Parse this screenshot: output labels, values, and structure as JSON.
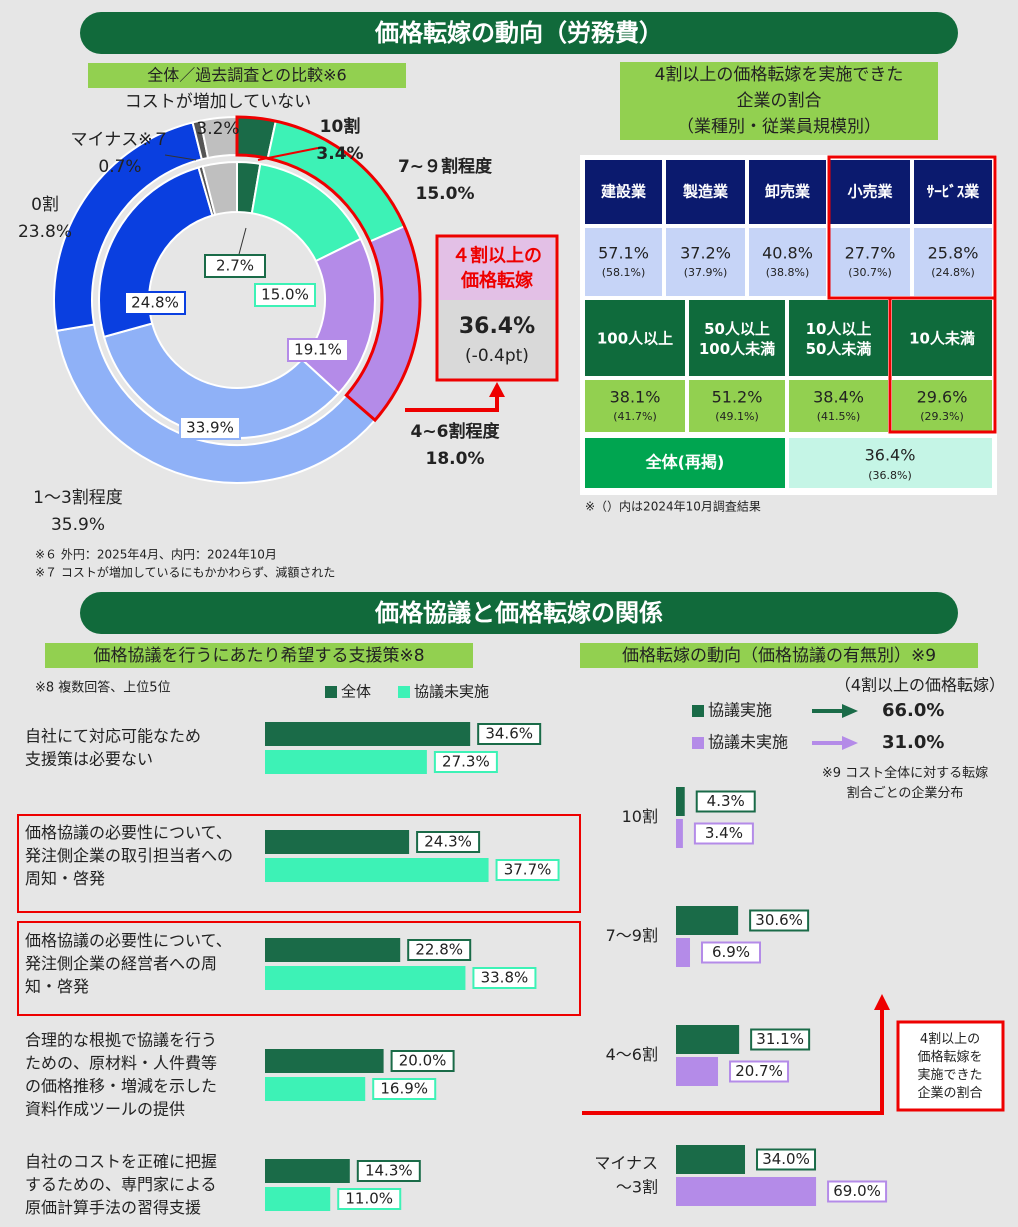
{
  "header1": "価格転嫁の動向（労務費）",
  "header2": "価格協議と価格転嫁の関係",
  "chart_data": [
    {
      "type": "donut",
      "title": "全体／過去調査との比較※6",
      "categories": [
        "10割",
        "7~９割程度",
        "4~6割程度",
        "1～3割程度",
        "0割",
        "マイナス※７",
        "コストが増加していない"
      ],
      "colors": [
        "#1a6b48",
        "#3df2b6",
        "#b48be8",
        "#8fb1f7",
        "#0a3fe0",
        "#555555",
        "#bfbfbf"
      ],
      "series": [
        {
          "values": [
            3.4,
            15.0,
            18.0,
            35.9,
            23.8,
            0.7,
            3.2
          ],
          "value_labels": [
            "3.4%",
            "15.0%",
            "18.0%",
            "35.9%",
            "23.8%",
            "0.7%",
            "3.2%"
          ]
        },
        {
          "values": [
            2.7,
            15.0,
            19.1,
            33.9,
            24.8,
            0.5,
            4.0
          ],
          "value_labels": [
            "2.7%",
            "15.0%",
            "19.1%",
            "33.9%",
            "24.8%",
            null,
            null
          ]
        }
      ],
      "callout": {
        "title": "４割以上の\n価格転嫁",
        "value": "36.4%",
        "change": "(-0.4pt)"
      },
      "notes": [
        "※６ 外円：2025年4月、内円：2024年10月",
        "※７ コストが増加しているにもかかわらず、減額された"
      ]
    },
    {
      "type": "bar",
      "orientation": "horizontal",
      "title": "価格協議を行うにあたり希望する支援策※8",
      "note": "※8 複数回答、上位5位",
      "categories": [
        "自社にて対応可能なため\n支援策は必要ない",
        "価格協議の必要性について、\n発注側企業の取引担当者への\n周知・啓発",
        "価格協議の必要性について、\n発注側企業の経営者への周\n知・啓発",
        "合理的な根拠で協議を行う\nための、原材料・人件費等\nの価格推移・増減を示した\n資料作成ツールの提供",
        "自社のコストを正確に把握\nするための、専門家による\n原価計算手法の習得支援"
      ],
      "series": [
        {
          "name": "全体",
          "color": "#1a6b48",
          "values": [
            34.6,
            24.3,
            22.8,
            20.0,
            14.3
          ],
          "value_labels": [
            "34.6%",
            "24.3%",
            "22.8%",
            "20.0%",
            "14.3%"
          ]
        },
        {
          "name": "協議未実施",
          "color": "#3df2b6",
          "values": [
            27.3,
            37.7,
            33.8,
            16.9,
            11.0
          ],
          "value_labels": [
            "27.3%",
            "37.7%",
            "33.8%",
            "16.9%",
            "11.0%"
          ]
        }
      ]
    },
    {
      "type": "bar",
      "orientation": "horizontal",
      "title": "価格転嫁の動向（価格協議の有無別）※9",
      "subtitle": "（4割以上の価格転嫁）",
      "note": "※9 コスト全体に対する転嫁\n割合ごとの企業分布",
      "callout": "4割以上の\n価格転嫁を\n実施できた\n企業の割合",
      "categories": [
        "10割",
        "7～9割",
        "4～6割",
        "マイナス\n～3割"
      ],
      "series": [
        {
          "name": "協議実施",
          "color": "#1a6b48",
          "total_label": "66.0%",
          "values": [
            4.3,
            30.6,
            31.1,
            34.0
          ],
          "value_labels": [
            "4.3%",
            "30.6%",
            "31.1%",
            "34.0%"
          ]
        },
        {
          "name": "協議未実施",
          "color": "#b48be8",
          "total_label": "31.0%",
          "values": [
            3.4,
            6.9,
            20.7,
            69.0
          ],
          "value_labels": [
            "3.4%",
            "6.9%",
            "20.7%",
            "69.0%"
          ]
        }
      ]
    }
  ],
  "table": {
    "title": "4割以上の価格転嫁を実施できた\n企業の割合\n（業種別・従業員規模別）",
    "industry": {
      "headers": [
        "建設業",
        "製造業",
        "卸売業",
        "小売業",
        "ｻｰﾋﾞｽ業"
      ],
      "values": [
        "57.1%",
        "37.2%",
        "40.8%",
        "27.7%",
        "25.8%"
      ],
      "previous": [
        "(58.1%)",
        "(37.9%)",
        "(38.8%)",
        "(30.7%)",
        "(24.8%)"
      ]
    },
    "size": {
      "headers": [
        "100人以上",
        "50人以上\n100人未満",
        "10人以上\n50人未満",
        "10人未満"
      ],
      "values": [
        "38.1%",
        "51.2%",
        "38.4%",
        "29.6%"
      ],
      "previous": [
        "(41.7%)",
        "(49.1%)",
        "(41.5%)",
        "(29.3%)"
      ]
    },
    "total": {
      "label": "全体(再掲)",
      "value": "36.4%",
      "previous": "(36.8%)"
    },
    "note": "※（）内は2024年10月調査結果"
  }
}
